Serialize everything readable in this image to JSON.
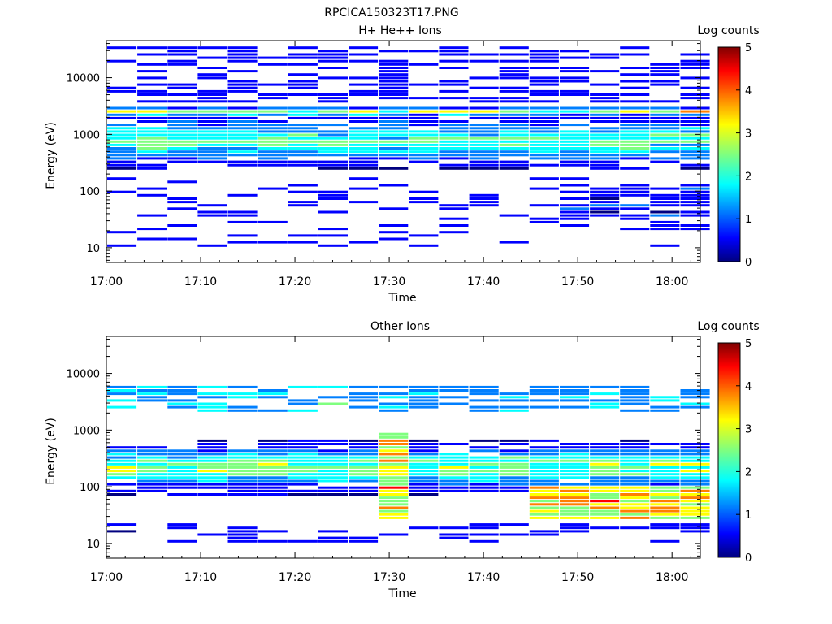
{
  "figure": {
    "filename": "RPCICA150323T17.PNG"
  },
  "colormap": [
    "#00007f",
    "#0000ff",
    "#007fff",
    "#00ffff",
    "#7fff7f",
    "#ffff00",
    "#ff7f00",
    "#ff0000",
    "#7f0000"
  ],
  "chart_data": [
    {
      "type": "heatmap",
      "title": "H+ He++ Ions",
      "xlabel": "Time",
      "ylabel": "Energy (eV)",
      "xticks": [
        "17:00",
        "17:10",
        "17:20",
        "17:30",
        "17:40",
        "17:50",
        "18:00"
      ],
      "xlim_minutes": [
        0,
        63
      ],
      "yscale": "log",
      "ylim": [
        5.5,
        45000
      ],
      "yticks": [
        10,
        100,
        1000,
        10000
      ],
      "yticklabels": [
        "10",
        "100",
        "1000",
        "10000"
      ],
      "colorbar": {
        "label": "Log counts",
        "range": [
          0,
          5
        ],
        "ticks": [
          "0",
          "1",
          "2",
          "3",
          "4",
          "5"
        ]
      },
      "time_bins_minutes": [
        0,
        3.2,
        6.4,
        9.6,
        12.8,
        16,
        19.2,
        22.4,
        25.6,
        28.8,
        32,
        35.2,
        38.4,
        41.6,
        44.8,
        48,
        51.2,
        54.4,
        57.6,
        60.8
      ],
      "profile": "h",
      "seed": 17
    },
    {
      "type": "heatmap",
      "title": "Other Ions",
      "xlabel": "Time",
      "ylabel": "Energy (eV)",
      "xticks": [
        "17:00",
        "17:10",
        "17:20",
        "17:30",
        "17:40",
        "17:50",
        "18:00"
      ],
      "xlim_minutes": [
        0,
        63
      ],
      "yscale": "log",
      "ylim": [
        5.5,
        45000
      ],
      "yticks": [
        10,
        100,
        1000,
        10000
      ],
      "yticklabels": [
        "10",
        "100",
        "1000",
        "10000"
      ],
      "colorbar": {
        "label": "Log counts",
        "range": [
          0,
          5
        ],
        "ticks": [
          "0",
          "1",
          "2",
          "3",
          "4",
          "5"
        ]
      },
      "time_bins_minutes": [
        0,
        3.2,
        6.4,
        9.6,
        12.8,
        16,
        19.2,
        22.4,
        25.6,
        28.8,
        32,
        35.2,
        38.4,
        41.6,
        44.8,
        48,
        51.2,
        54.4,
        57.6,
        60.8
      ],
      "profile": "o",
      "seed": 91
    }
  ]
}
